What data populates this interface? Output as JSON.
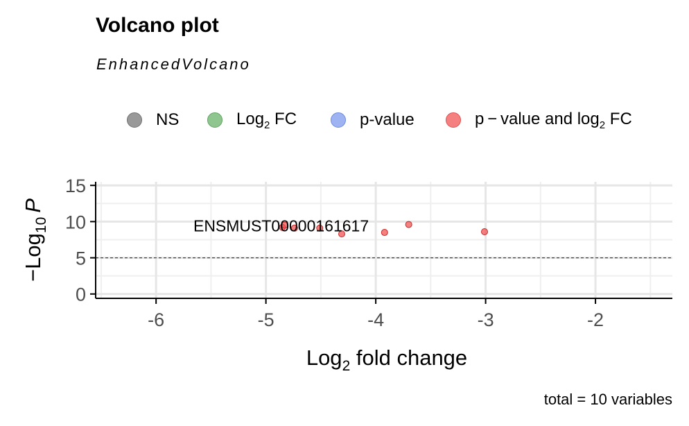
{
  "chart_data": {
    "type": "scatter",
    "title": "Volcano plot",
    "subtitle": "EnhancedVolcano",
    "xlabel_main": "Log",
    "xlabel_sub": "2",
    "xlabel_rest": " fold change",
    "ylabel_main": "−Log",
    "ylabel_sub": "10",
    "ylabel_var": "P",
    "xlim": [
      -6.55,
      -1.3
    ],
    "ylim": [
      -0.6,
      15.5
    ],
    "x_ticks": [
      -6,
      -5,
      -4,
      -3,
      -2
    ],
    "x_tick_labels": [
      "-6",
      "-5",
      "-4",
      "-3",
      "-2"
    ],
    "y_ticks": [
      0,
      5,
      10,
      15
    ],
    "y_tick_labels": [
      "0",
      "5",
      "10",
      "15"
    ],
    "pvalue_cutoff_line": 5,
    "grid": true,
    "legend_position": "top",
    "legend": [
      {
        "key": "ns",
        "label": "NS",
        "color": "#999999"
      },
      {
        "key": "fc",
        "label_main": "Log",
        "label_sub": "2",
        "label_rest": " FC",
        "color": "#7fbf7f"
      },
      {
        "key": "p",
        "label": "p-value",
        "color": "#8ea8f0"
      },
      {
        "key": "both",
        "label_main": "p − value and log",
        "label_sub": "2",
        "label_rest": " FC",
        "color": "#f48080"
      }
    ],
    "series": [
      {
        "name": "p − value and log2 FC",
        "color": "#f04a4a",
        "points": [
          {
            "x": -4.85,
            "y": 9.2
          },
          {
            "x": -4.83,
            "y": 9.5
          },
          {
            "x": -4.74,
            "y": 9.1
          },
          {
            "x": -4.51,
            "y": 9.1
          },
          {
            "x": -4.31,
            "y": 8.3
          },
          {
            "x": -3.92,
            "y": 8.5
          },
          {
            "x": -3.7,
            "y": 9.6
          },
          {
            "x": -3.01,
            "y": 8.6
          }
        ]
      }
    ],
    "point_label": {
      "text": "ENSMUST00000161617",
      "x": -4.83,
      "y": 9.5
    },
    "caption": "total = 10 variables"
  }
}
